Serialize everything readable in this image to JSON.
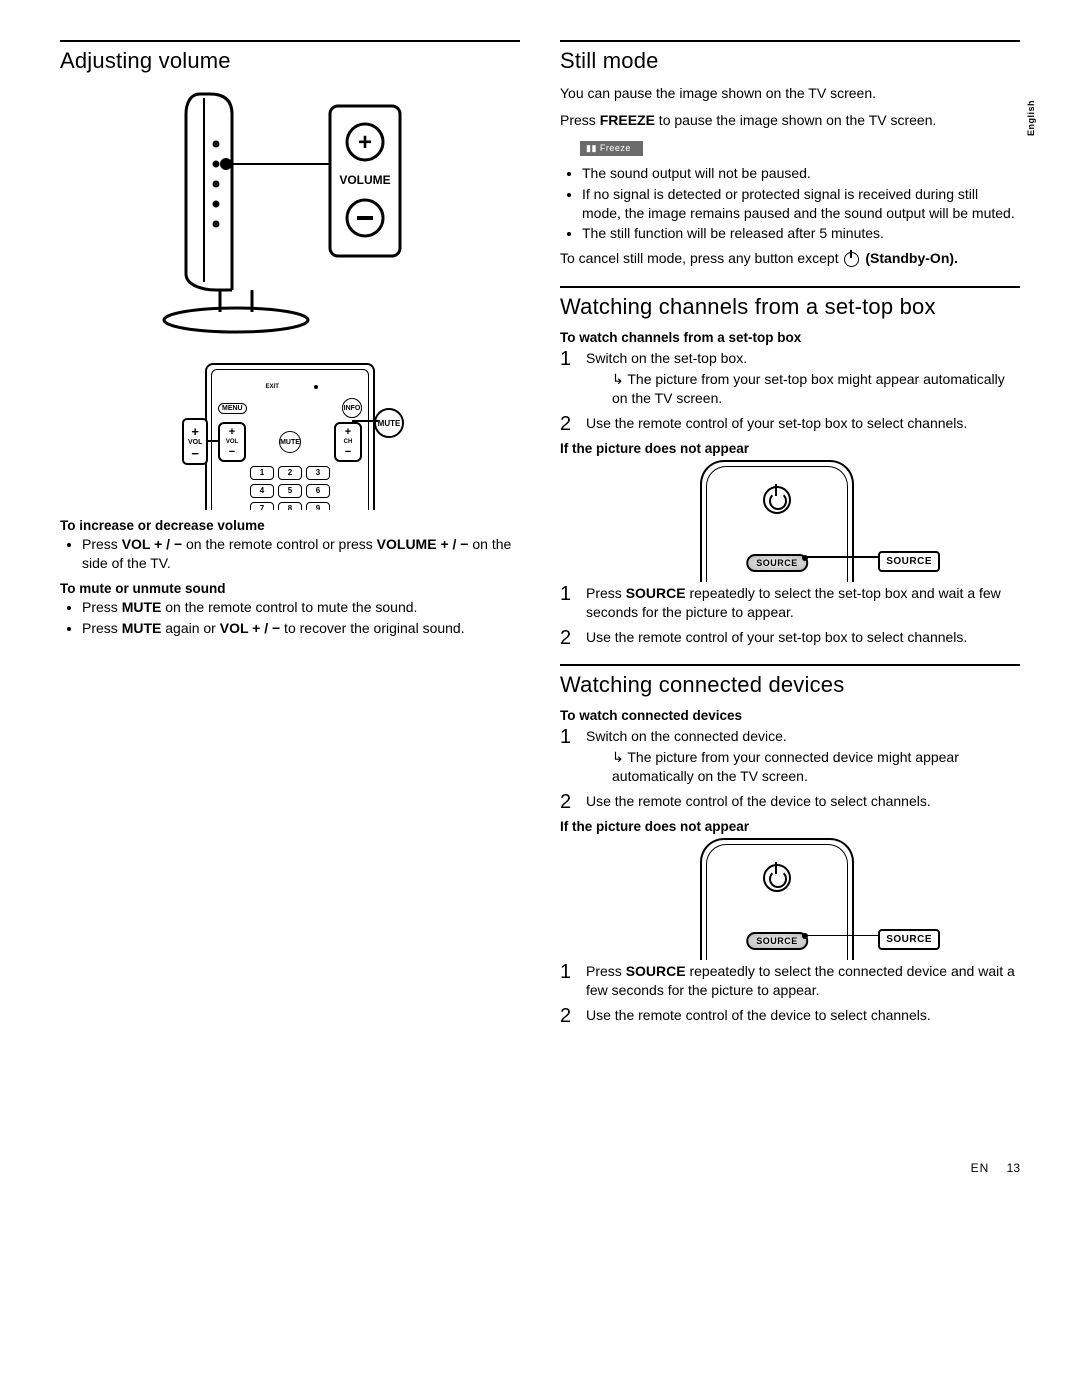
{
  "language_tab": "English",
  "left": {
    "title": "Adjusting volume",
    "volume_panel": {
      "plus": "+",
      "minus": "−",
      "label": "VOLUME"
    },
    "remote": {
      "exit": "EXIT",
      "menu": "MENU",
      "info": "INFO",
      "mute": "MUTE",
      "vol_label": "VOL",
      "ch_label": "CH",
      "callout_vol": "VOL",
      "callout_mute": "MUTE",
      "row1": [
        "1",
        "2",
        "3"
      ],
      "row2": [
        "4",
        "5",
        "6"
      ],
      "row3": [
        "7",
        "8",
        "9"
      ]
    },
    "sub1": "To increase or decrease volume",
    "sub1_items": [
      "Press <b>VOL + / −</b> on the remote control or press <b>VOLUME + / −</b> on the side of the TV."
    ],
    "sub2": "To mute or unmute sound",
    "sub2_items": [
      "Press <b>MUTE</b> on the remote control to mute the sound.",
      "Press <b>MUTE</b> again or <b>VOL + / −</b> to recover the original sound."
    ]
  },
  "still": {
    "title": "Still mode",
    "p1": "You can pause the image shown on the TV screen.",
    "p2_pre": "Press ",
    "p2_bold": "FREEZE",
    "p2_post": " to pause the image shown on the TV screen.",
    "badge": "▮▮  Freeze",
    "bullets": [
      "The sound output will not be paused.",
      "If no signal is detected or protected signal is received during still mode, the image remains paused and the sound output will be muted.",
      "The still function will be released after 5 minutes."
    ],
    "cancel_pre": "To cancel still mode, press any button except ",
    "cancel_post": " (Standby-On)."
  },
  "stb": {
    "title": "Watching channels from a set-top box",
    "sub": "To watch channels from a set-top box",
    "step1": "Switch on the set-top box.",
    "step1_sub": "The picture from your set-top box might appear automatically on the TV screen.",
    "step2": "Use the remote control of your set-top box to select channels.",
    "if": "If the picture does not appear",
    "src_btn": "SOURCE",
    "src_call": "SOURCE",
    "step3": "Press <b>SOURCE</b> repeatedly to select the set-top box and wait a few seconds for the picture to appear.",
    "step4": "Use the remote control of your set-top box to select channels."
  },
  "conn": {
    "title": "Watching connected devices",
    "sub": "To watch connected devices",
    "step1": "Switch on the connected device.",
    "step1_sub": "The picture from your connected device might appear automatically on the TV screen.",
    "step2": "Use the remote control of the device to select channels.",
    "if": "If the picture does not appear",
    "src_btn": "SOURCE",
    "src_call": "SOURCE",
    "step3": "Press <b>SOURCE</b> repeatedly to select the connected device and wait a few seconds for the picture to appear.",
    "step4": "Use the remote control of the device to select channels."
  },
  "footer": {
    "lang": "EN",
    "page": "13"
  },
  "colors": {
    "text": "#000000",
    "background": "#ffffff",
    "badge_bg": "#6b6b6b",
    "badge_text": "#ffffff"
  }
}
